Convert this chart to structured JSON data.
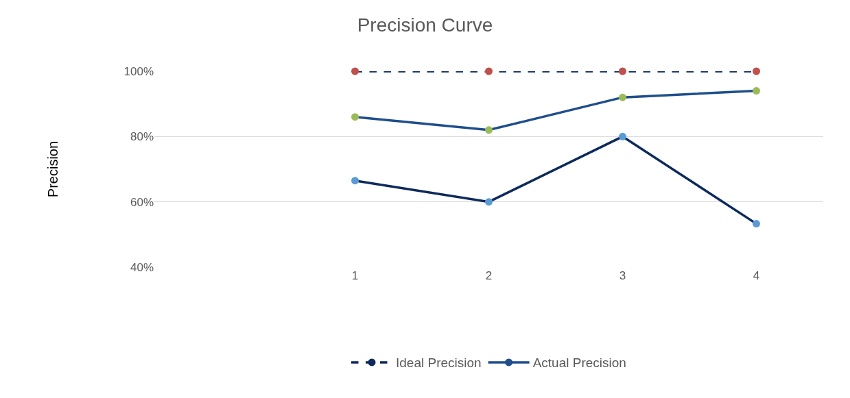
{
  "chart_data": {
    "type": "line",
    "title": "Precision Curve",
    "ylabel": "Precision",
    "categories": [
      null,
      "1",
      "2",
      "3",
      "4"
    ],
    "series": [
      {
        "color": "#0e2a5c",
        "colors": [
          null,
          "#5b9bd5",
          "#5b9bd5",
          "#5b9bd5",
          "#5b9bd5"
        ],
        "values": [
          null,
          66.5,
          60,
          80,
          53.3
        ]
      },
      {
        "name": "Ideal Precision",
        "color": "#0e2a5c",
        "colors": [
          null,
          "#c0504d",
          "#c0504d",
          "#c0504d",
          "#c0504d"
        ],
        "line_style": "dashed",
        "values": [
          null,
          100,
          100,
          100,
          100
        ]
      },
      {
        "name": "Actual Precision",
        "color": "#1f4e8c",
        "colors": [
          null,
          "#9bbb59",
          "#9bbb59",
          "#9bbb59",
          "#9bbb59"
        ],
        "values": [
          null,
          86,
          82,
          92,
          94
        ]
      }
    ],
    "ylim": [
      40,
      100
    ],
    "yticks": [
      {
        "value": 40,
        "label": "40%"
      },
      {
        "value": 60,
        "label": "60%"
      },
      {
        "value": 80,
        "label": "80%"
      },
      {
        "value": 100,
        "label": "100%"
      }
    ],
    "grid": "y",
    "legend": "bottom",
    "marker": "circle",
    "line_style": "solid"
  }
}
